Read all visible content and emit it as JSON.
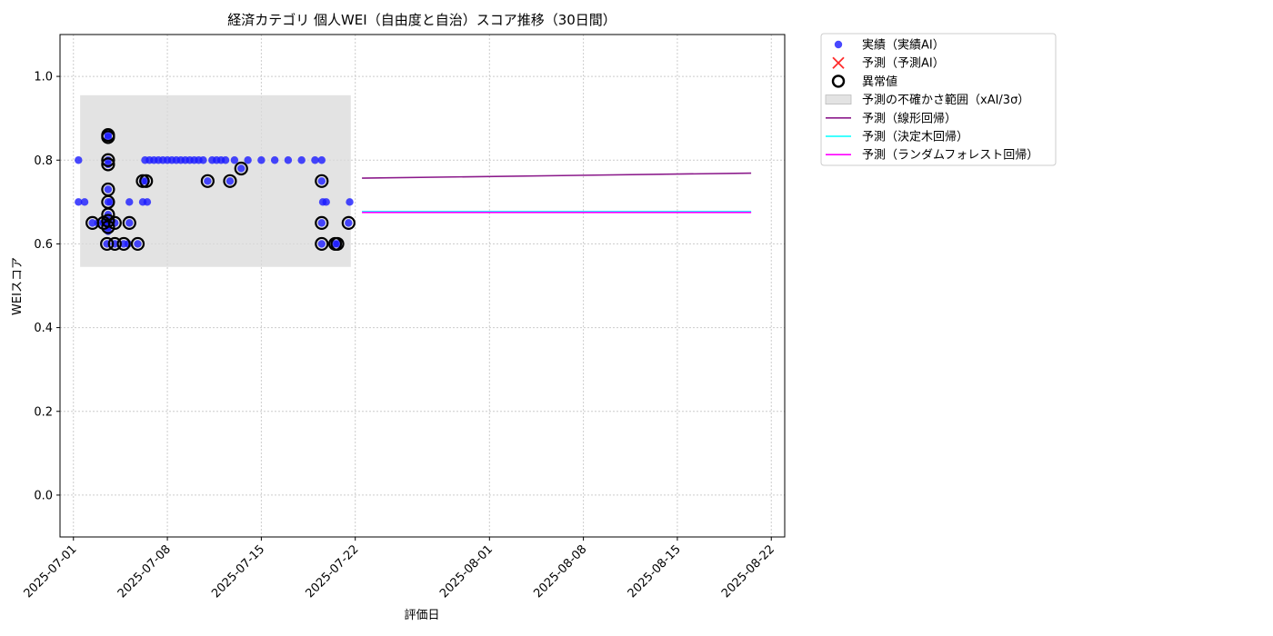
{
  "chart_data": {
    "type": "scatter",
    "title": "経済カテゴリ 個人WEI（自由度と自治）スコア推移（30日間）",
    "xlabel": "評価日",
    "ylabel": "WEIスコア",
    "xlim": [
      "2025-06-30",
      "2025-08-23"
    ],
    "ylim": [
      -0.1,
      1.1
    ],
    "yticks": [
      0.0,
      0.2,
      0.4,
      0.6,
      0.8,
      1.0
    ],
    "ytick_labels": [
      "0.0",
      "0.2",
      "0.4",
      "0.6",
      "0.8",
      "1.0"
    ],
    "xticks": [
      "2025-07-01",
      "2025-07-08",
      "2025-07-15",
      "2025-07-22",
      "2025-08-01",
      "2025-08-08",
      "2025-08-15",
      "2025-08-22"
    ],
    "grid": true,
    "legend_placement": "outside-upper-right",
    "colors": {
      "actual": "#1a1aff",
      "predicted_ai": "#ff2a2a",
      "anomaly": "#000000",
      "band": "#d9d9d9",
      "linear": "#8b1a8b",
      "tree": "#00ffff",
      "forest": "#ff00ff",
      "grid": "#cccccc"
    },
    "legend": [
      {
        "key": "actual",
        "label": "実績（実績AI）",
        "marker": "dot"
      },
      {
        "key": "predicted_ai",
        "label": "予測（予測AI）",
        "marker": "x"
      },
      {
        "key": "anomaly",
        "label": "異常値",
        "marker": "ring"
      },
      {
        "key": "band",
        "label": "予測の不確かさ範囲（xAI/3σ）",
        "marker": "box"
      },
      {
        "key": "linear",
        "label": "予測（線形回帰）",
        "marker": "line"
      },
      {
        "key": "tree",
        "label": "予測（決定木回帰）",
        "marker": "line"
      },
      {
        "key": "forest",
        "label": "予測（ランダムフォレスト回帰）",
        "marker": "line"
      }
    ],
    "uncertainty_band": {
      "x": [
        "2025-07-01T12:00",
        "2025-07-21T16:00"
      ],
      "y": [
        0.545,
        0.955
      ]
    },
    "actual_points": [
      {
        "x": "2025-07-01T09:00",
        "y": 0.8
      },
      {
        "x": "2025-07-01T09:00",
        "y": 0.7
      },
      {
        "x": "2025-07-01T20:00",
        "y": 0.7
      },
      {
        "x": "2025-07-02T10:00",
        "y": 0.65
      },
      {
        "x": "2025-07-02T20:00",
        "y": 0.65
      },
      {
        "x": "2025-07-03T06:00",
        "y": 0.65
      },
      {
        "x": "2025-07-03T12:00",
        "y": 0.6
      },
      {
        "x": "2025-07-03T12:00",
        "y": 0.65
      },
      {
        "x": "2025-07-03T14:00",
        "y": 0.86
      },
      {
        "x": "2025-07-03T14:00",
        "y": 0.855
      },
      {
        "x": "2025-07-03T14:00",
        "y": 0.8
      },
      {
        "x": "2025-07-03T14:00",
        "y": 0.79
      },
      {
        "x": "2025-07-03T14:00",
        "y": 0.73
      },
      {
        "x": "2025-07-03T14:00",
        "y": 0.7
      },
      {
        "x": "2025-07-03T14:00",
        "y": 0.67
      },
      {
        "x": "2025-07-03T14:00",
        "y": 0.655
      },
      {
        "x": "2025-07-03T14:00",
        "y": 0.64
      },
      {
        "x": "2025-07-03T14:00",
        "y": 0.63
      },
      {
        "x": "2025-07-03T18:00",
        "y": 0.7
      },
      {
        "x": "2025-07-04T02:00",
        "y": 0.6
      },
      {
        "x": "2025-07-04T02:00",
        "y": 0.65
      },
      {
        "x": "2025-07-04T18:00",
        "y": 0.6
      },
      {
        "x": "2025-07-05T02:00",
        "y": 0.6
      },
      {
        "x": "2025-07-05T04:00",
        "y": 0.65
      },
      {
        "x": "2025-07-05T04:00",
        "y": 0.7
      },
      {
        "x": "2025-07-05T19:00",
        "y": 0.6
      },
      {
        "x": "2025-07-06T04:00",
        "y": 0.75
      },
      {
        "x": "2025-07-06T04:00",
        "y": 0.7
      },
      {
        "x": "2025-07-06T08:00",
        "y": 0.8
      },
      {
        "x": "2025-07-06T10:00",
        "y": 0.75
      },
      {
        "x": "2025-07-06T12:00",
        "y": 0.7
      },
      {
        "x": "2025-07-06T16:00",
        "y": 0.8
      },
      {
        "x": "2025-07-07T00:00",
        "y": 0.8
      },
      {
        "x": "2025-07-07T08:00",
        "y": 0.8
      },
      {
        "x": "2025-07-07T16:00",
        "y": 0.8
      },
      {
        "x": "2025-07-08T00:00",
        "y": 0.8
      },
      {
        "x": "2025-07-08T08:00",
        "y": 0.8
      },
      {
        "x": "2025-07-08T16:00",
        "y": 0.8
      },
      {
        "x": "2025-07-09T00:00",
        "y": 0.8
      },
      {
        "x": "2025-07-09T08:00",
        "y": 0.8
      },
      {
        "x": "2025-07-09T16:00",
        "y": 0.8
      },
      {
        "x": "2025-07-10T00:00",
        "y": 0.8
      },
      {
        "x": "2025-07-10T08:00",
        "y": 0.8
      },
      {
        "x": "2025-07-10T16:00",
        "y": 0.8
      },
      {
        "x": "2025-07-11T00:00",
        "y": 0.75
      },
      {
        "x": "2025-07-11T08:00",
        "y": 0.8
      },
      {
        "x": "2025-07-11T16:00",
        "y": 0.8
      },
      {
        "x": "2025-07-12T00:00",
        "y": 0.8
      },
      {
        "x": "2025-07-12T08:00",
        "y": 0.8
      },
      {
        "x": "2025-07-12T16:00",
        "y": 0.75
      },
      {
        "x": "2025-07-13T00:00",
        "y": 0.8
      },
      {
        "x": "2025-07-13T12:00",
        "y": 0.78
      },
      {
        "x": "2025-07-14T00:00",
        "y": 0.8
      },
      {
        "x": "2025-07-15T00:00",
        "y": 0.8
      },
      {
        "x": "2025-07-16T00:00",
        "y": 0.8
      },
      {
        "x": "2025-07-17T00:00",
        "y": 0.8
      },
      {
        "x": "2025-07-18T00:00",
        "y": 0.8
      },
      {
        "x": "2025-07-19T00:00",
        "y": 0.8
      },
      {
        "x": "2025-07-19T12:00",
        "y": 0.6
      },
      {
        "x": "2025-07-19T12:00",
        "y": 0.65
      },
      {
        "x": "2025-07-19T12:00",
        "y": 0.75
      },
      {
        "x": "2025-07-19T12:00",
        "y": 0.8
      },
      {
        "x": "2025-07-19T14:00",
        "y": 0.7
      },
      {
        "x": "2025-07-19T20:00",
        "y": 0.7
      },
      {
        "x": "2025-07-20T12:00",
        "y": 0.6
      },
      {
        "x": "2025-07-20T16:00",
        "y": 0.6
      },
      {
        "x": "2025-07-21T12:00",
        "y": 0.65
      },
      {
        "x": "2025-07-21T14:00",
        "y": 0.7
      }
    ],
    "anomalies": [
      {
        "x": "2025-07-02T10:00",
        "y": 0.65
      },
      {
        "x": "2025-07-03T06:00",
        "y": 0.65
      },
      {
        "x": "2025-07-03T12:00",
        "y": 0.6
      },
      {
        "x": "2025-07-03T14:00",
        "y": 0.86
      },
      {
        "x": "2025-07-03T14:00",
        "y": 0.855
      },
      {
        "x": "2025-07-03T14:00",
        "y": 0.8
      },
      {
        "x": "2025-07-03T14:00",
        "y": 0.79
      },
      {
        "x": "2025-07-03T14:00",
        "y": 0.73
      },
      {
        "x": "2025-07-03T14:00",
        "y": 0.7
      },
      {
        "x": "2025-07-03T14:00",
        "y": 0.67
      },
      {
        "x": "2025-07-03T14:00",
        "y": 0.655
      },
      {
        "x": "2025-07-03T14:00",
        "y": 0.64
      },
      {
        "x": "2025-07-04T02:00",
        "y": 0.6
      },
      {
        "x": "2025-07-04T02:00",
        "y": 0.65
      },
      {
        "x": "2025-07-04T18:00",
        "y": 0.6
      },
      {
        "x": "2025-07-05T04:00",
        "y": 0.65
      },
      {
        "x": "2025-07-05T19:00",
        "y": 0.6
      },
      {
        "x": "2025-07-06T04:00",
        "y": 0.75
      },
      {
        "x": "2025-07-06T10:00",
        "y": 0.75
      },
      {
        "x": "2025-07-11T00:00",
        "y": 0.75
      },
      {
        "x": "2025-07-12T16:00",
        "y": 0.75
      },
      {
        "x": "2025-07-13T12:00",
        "y": 0.78
      },
      {
        "x": "2025-07-19T12:00",
        "y": 0.6
      },
      {
        "x": "2025-07-19T12:00",
        "y": 0.65
      },
      {
        "x": "2025-07-19T12:00",
        "y": 0.75
      },
      {
        "x": "2025-07-20T12:00",
        "y": 0.6
      },
      {
        "x": "2025-07-20T16:00",
        "y": 0.6
      },
      {
        "x": "2025-07-21T12:00",
        "y": 0.65
      }
    ],
    "linear_forecast": [
      {
        "x": "2025-07-22T12:00",
        "y": 0.757
      },
      {
        "x": "2025-08-20T12:00",
        "y": 0.769
      }
    ],
    "tree_forecast": [
      {
        "x": "2025-07-22T12:00",
        "y": 0.677
      },
      {
        "x": "2025-08-20T12:00",
        "y": 0.677
      }
    ],
    "forest_forecast": [
      {
        "x": "2025-07-22T12:00",
        "y": 0.675
      },
      {
        "x": "2025-08-20T12:00",
        "y": 0.675
      }
    ]
  }
}
